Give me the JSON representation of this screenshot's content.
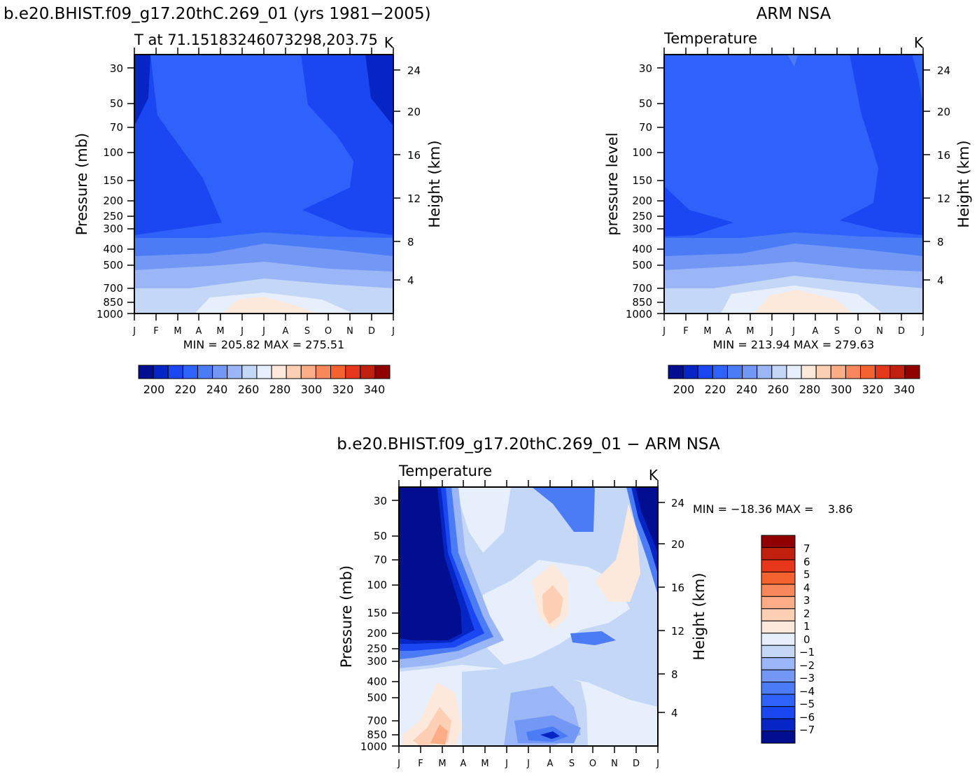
{
  "palette": {
    "abs_colors": [
      "#000e8f",
      "#0525c4",
      "#1b47f2",
      "#2f62fa",
      "#4b7cf6",
      "#7297f4",
      "#9bb6f6",
      "#c4d7f7",
      "#e6effb",
      "#fde9db",
      "#fdd0b5",
      "#fcac86",
      "#f8885b",
      "#f3622f",
      "#e6371b",
      "#c1200e",
      "#900000"
    ],
    "diff_colors": [
      "#000e8f",
      "#0525c4",
      "#1b47f2",
      "#2f62fa",
      "#4b7cf6",
      "#7297f4",
      "#9bb6f6",
      "#c4d7f7",
      "#e6effb",
      "#fde9db",
      "#fdd0b5",
      "#fcac86",
      "#f8885b",
      "#f3622f",
      "#e6371b",
      "#c1200e",
      "#900000"
    ]
  },
  "chart_data": [
    {
      "id": "model",
      "type": "contour",
      "main_title": "b.e20.BHIST.f09_g17.20thC.269_01 (yrs 1981−2005)",
      "subtitle_left": "T at 71.15183246073298,203.75",
      "subtitle_right": "K",
      "ylabel": "Pressure (mb)",
      "y2label": "Height (km)",
      "x_ticks": [
        "J",
        "F",
        "M",
        "A",
        "M",
        "J",
        "J",
        "A",
        "S",
        "O",
        "N",
        "D",
        "J"
      ],
      "y_ticks": [
        "30",
        "50",
        "70",
        "100",
        "150",
        "200",
        "250",
        "300",
        "400",
        "500",
        "700",
        "850",
        "1000"
      ],
      "y2_ticks": [
        "24",
        "20",
        "16",
        "12",
        "8",
        "4"
      ],
      "stats": "MIN = 205.82 MAX = 275.51",
      "min": 205.82,
      "max": 275.51,
      "colorbar_labels": [
        "200",
        "220",
        "240",
        "260",
        "280",
        "300",
        "320",
        "340"
      ]
    },
    {
      "id": "obs",
      "type": "contour",
      "main_title": "ARM NSA",
      "subtitle_left": "Temperature",
      "subtitle_right": "K",
      "ylabel": "pressure level",
      "y2label": "Height (km)",
      "x_ticks": [
        "J",
        "F",
        "M",
        "A",
        "M",
        "J",
        "J",
        "A",
        "S",
        "O",
        "N",
        "D",
        "J"
      ],
      "y_ticks": [
        "30",
        "50",
        "70",
        "100",
        "150",
        "200",
        "250",
        "300",
        "400",
        "500",
        "700",
        "850",
        "1000"
      ],
      "y2_ticks": [
        "24",
        "20",
        "16",
        "12",
        "8",
        "4"
      ],
      "stats": "MIN = 213.94 MAX = 279.63",
      "min": 213.94,
      "max": 279.63,
      "colorbar_labels": [
        "200",
        "220",
        "240",
        "260",
        "280",
        "300",
        "320",
        "340"
      ]
    },
    {
      "id": "diff",
      "type": "contour",
      "main_title": "b.e20.BHIST.f09_g17.20thC.269_01 − ARM NSA",
      "subtitle_left": "Temperature",
      "subtitle_right": "K",
      "ylabel": "Pressure (mb)",
      "y2label": "Height (km)",
      "x_ticks": [
        "J",
        "F",
        "M",
        "A",
        "M",
        "J",
        "J",
        "A",
        "S",
        "O",
        "N",
        "D",
        "J"
      ],
      "y_ticks": [
        "30",
        "50",
        "70",
        "100",
        "150",
        "200",
        "250",
        "300",
        "400",
        "500",
        "700",
        "850",
        "1000"
      ],
      "y2_ticks": [
        "24",
        "20",
        "16",
        "12",
        "8",
        "4"
      ],
      "stats": "MIN = −18.36 MAX =    3.86",
      "min": -18.36,
      "max": 3.86,
      "colorbar_labels": [
        "7",
        "6",
        "5",
        "4",
        "3",
        "2",
        "1",
        "0",
        "−1",
        "−2",
        "−3",
        "−4",
        "−5",
        "−6",
        "−7"
      ]
    }
  ]
}
